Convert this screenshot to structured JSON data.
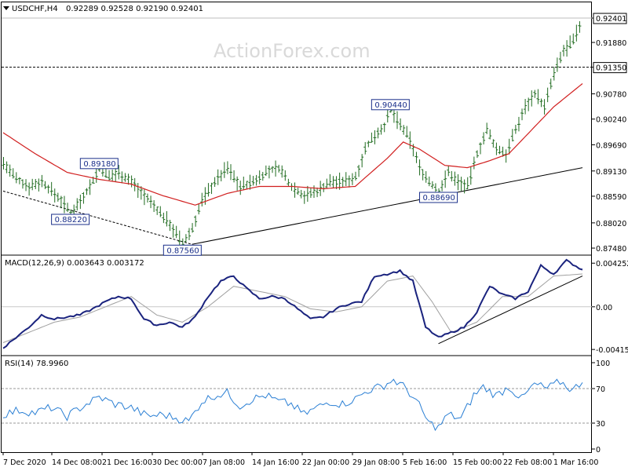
{
  "header": {
    "symbol": "USDCHF,H4",
    "ohlc": "0.92289 0.92528 0.92190 0.92401"
  },
  "watermark": "ActionForex.com",
  "colors": {
    "bars": "#1f6b1f",
    "ma": "#d11f1f",
    "macd": "#1a237e",
    "signal": "#a0a0a0",
    "rsi": "#2a7fd4",
    "label_border": "#1a2f8a"
  },
  "price_axis": {
    "ticks": [
      "0.92401",
      "0.91880",
      "0.91350",
      "0.90780",
      "0.90240",
      "0.89690",
      "0.89130",
      "0.88590",
      "0.88020",
      "0.87480"
    ],
    "ylim": [
      0.8738,
      0.9262
    ],
    "dashed_level_label": "0.91350",
    "current_price_label": "0.92401"
  },
  "annotations": [
    {
      "text": "0.89180",
      "price": 0.8918,
      "bar": 30
    },
    {
      "text": "0.88220",
      "price": 0.8822,
      "bar": 21
    },
    {
      "text": "0.87560",
      "price": 0.8756,
      "bar": 56
    },
    {
      "text": "0.90440",
      "price": 0.9044,
      "bar": 121
    },
    {
      "text": "0.88690",
      "price": 0.8869,
      "bar": 136
    }
  ],
  "macd_panel": {
    "label": "MACD(12,26,9) 0.003643 0.003172",
    "ticks": [
      "0.004252",
      "0.00",
      "-0.004159"
    ],
    "ylim": [
      -0.0043,
      0.0045
    ]
  },
  "rsi_panel": {
    "label": "RSI(14) 78.9960",
    "ticks": [
      "100",
      "70",
      "30",
      "0"
    ]
  },
  "x_axis": {
    "labels": [
      "7 Dec 2020",
      "14 Dec 08:00",
      "21 Dec 16:00",
      "30 Dec 00:00",
      "7 Jan 08:00",
      "14 Jan 16:00",
      "22 Jan 00:00",
      "29 Jan 08:00",
      "5 Feb 16:00",
      "15 Feb 00:00",
      "22 Feb 08:00",
      "1 Mar 16:00"
    ]
  },
  "chart_data": {
    "type": "line",
    "title": "USDCHF,H4",
    "bar_count": 181,
    "price_anchors": [
      [
        0,
        0.893
      ],
      [
        4,
        0.8895
      ],
      [
        8,
        0.888
      ],
      [
        12,
        0.889
      ],
      [
        15,
        0.887
      ],
      [
        18,
        0.885
      ],
      [
        21,
        0.8822
      ],
      [
        24,
        0.885
      ],
      [
        27,
        0.888
      ],
      [
        30,
        0.8918
      ],
      [
        33,
        0.89
      ],
      [
        36,
        0.891
      ],
      [
        40,
        0.889
      ],
      [
        44,
        0.886
      ],
      [
        48,
        0.883
      ],
      [
        52,
        0.88
      ],
      [
        56,
        0.8756
      ],
      [
        59,
        0.879
      ],
      [
        62,
        0.885
      ],
      [
        66,
        0.889
      ],
      [
        70,
        0.892
      ],
      [
        74,
        0.888
      ],
      [
        78,
        0.889
      ],
      [
        82,
        0.891
      ],
      [
        86,
        0.892
      ],
      [
        90,
        0.888
      ],
      [
        94,
        0.886
      ],
      [
        98,
        0.887
      ],
      [
        102,
        0.889
      ],
      [
        106,
        0.889
      ],
      [
        110,
        0.89
      ],
      [
        113,
        0.896
      ],
      [
        116,
        0.899
      ],
      [
        119,
        0.901
      ],
      [
        121,
        0.9044
      ],
      [
        124,
        0.901
      ],
      [
        127,
        0.898
      ],
      [
        130,
        0.892
      ],
      [
        133,
        0.889
      ],
      [
        136,
        0.8869
      ],
      [
        139,
        0.891
      ],
      [
        142,
        0.889
      ],
      [
        145,
        0.888
      ],
      [
        148,
        0.895
      ],
      [
        151,
        0.9
      ],
      [
        154,
        0.896
      ],
      [
        157,
        0.895
      ],
      [
        160,
        0.9
      ],
      [
        163,
        0.905
      ],
      [
        166,
        0.908
      ],
      [
        169,
        0.905
      ],
      [
        172,
        0.912
      ],
      [
        175,
        0.917
      ],
      [
        178,
        0.919
      ],
      [
        181,
        0.924
      ]
    ],
    "moving_average_anchors": [
      [
        0,
        0.8995
      ],
      [
        10,
        0.895
      ],
      [
        20,
        0.891
      ],
      [
        30,
        0.8895
      ],
      [
        40,
        0.8885
      ],
      [
        50,
        0.886
      ],
      [
        60,
        0.884
      ],
      [
        70,
        0.8865
      ],
      [
        80,
        0.888
      ],
      [
        90,
        0.888
      ],
      [
        100,
        0.8875
      ],
      [
        110,
        0.888
      ],
      [
        120,
        0.894
      ],
      [
        125,
        0.8975
      ],
      [
        130,
        0.896
      ],
      [
        138,
        0.8925
      ],
      [
        145,
        0.892
      ],
      [
        152,
        0.8935
      ],
      [
        158,
        0.895
      ],
      [
        165,
        0.9
      ],
      [
        172,
        0.905
      ],
      [
        181,
        0.91
      ]
    ],
    "trend_lines": [
      {
        "from": [
          0,
          0.887
        ],
        "to": [
          59,
          0.8756
        ]
      },
      {
        "from": [
          59,
          0.8756
        ],
        "to": [
          181,
          0.892
        ]
      }
    ],
    "macd_anchors": [
      [
        0,
        -0.004
      ],
      [
        4,
        -0.003
      ],
      [
        8,
        -0.002
      ],
      [
        12,
        -0.0008
      ],
      [
        16,
        -0.0012
      ],
      [
        20,
        -0.001
      ],
      [
        24,
        -0.0008
      ],
      [
        28,
        -0.0002
      ],
      [
        32,
        0.0005
      ],
      [
        36,
        0.001
      ],
      [
        40,
        0.0008
      ],
      [
        44,
        -0.0012
      ],
      [
        48,
        -0.0018
      ],
      [
        52,
        -0.0015
      ],
      [
        56,
        -0.002
      ],
      [
        60,
        -0.001
      ],
      [
        64,
        0.001
      ],
      [
        68,
        0.0025
      ],
      [
        72,
        0.003
      ],
      [
        76,
        0.0018
      ],
      [
        80,
        0.0008
      ],
      [
        84,
        0.001
      ],
      [
        88,
        0.0008
      ],
      [
        92,
        -0.0002
      ],
      [
        96,
        -0.0012
      ],
      [
        100,
        -0.001
      ],
      [
        104,
        -0.0002
      ],
      [
        108,
        0.0003
      ],
      [
        112,
        0.0005
      ],
      [
        116,
        0.003
      ],
      [
        120,
        0.0032
      ],
      [
        124,
        0.0035
      ],
      [
        128,
        0.0025
      ],
      [
        132,
        -0.002
      ],
      [
        136,
        -0.003
      ],
      [
        140,
        -0.0025
      ],
      [
        144,
        -0.002
      ],
      [
        148,
        -0.0005
      ],
      [
        152,
        0.002
      ],
      [
        156,
        0.0012
      ],
      [
        160,
        0.0008
      ],
      [
        164,
        0.0015
      ],
      [
        168,
        0.004
      ],
      [
        172,
        0.0032
      ],
      [
        176,
        0.0045
      ],
      [
        181,
        0.0036
      ]
    ],
    "signal_anchors": [
      [
        0,
        -0.0035
      ],
      [
        8,
        -0.0025
      ],
      [
        16,
        -0.0015
      ],
      [
        24,
        -0.001
      ],
      [
        32,
        0.0
      ],
      [
        40,
        0.001
      ],
      [
        48,
        -0.0008
      ],
      [
        56,
        -0.0015
      ],
      [
        64,
        0.0
      ],
      [
        72,
        0.002
      ],
      [
        80,
        0.0015
      ],
      [
        88,
        0.001
      ],
      [
        96,
        -0.0002
      ],
      [
        104,
        -0.0005
      ],
      [
        112,
        0.0
      ],
      [
        120,
        0.0025
      ],
      [
        128,
        0.003
      ],
      [
        134,
        0.0005
      ],
      [
        140,
        -0.0025
      ],
      [
        148,
        -0.0015
      ],
      [
        156,
        0.001
      ],
      [
        164,
        0.001
      ],
      [
        172,
        0.003
      ],
      [
        181,
        0.0032
      ]
    ],
    "rsi_anchors": [
      [
        0,
        40
      ],
      [
        5,
        45
      ],
      [
        10,
        42
      ],
      [
        15,
        48
      ],
      [
        20,
        38
      ],
      [
        25,
        50
      ],
      [
        30,
        60
      ],
      [
        35,
        52
      ],
      [
        40,
        48
      ],
      [
        45,
        38
      ],
      [
        50,
        40
      ],
      [
        55,
        35
      ],
      [
        58,
        32
      ],
      [
        62,
        55
      ],
      [
        66,
        62
      ],
      [
        70,
        65
      ],
      [
        74,
        50
      ],
      [
        78,
        58
      ],
      [
        82,
        62
      ],
      [
        86,
        55
      ],
      [
        90,
        52
      ],
      [
        94,
        40
      ],
      [
        98,
        48
      ],
      [
        102,
        55
      ],
      [
        106,
        52
      ],
      [
        110,
        58
      ],
      [
        114,
        68
      ],
      [
        118,
        72
      ],
      [
        122,
        80
      ],
      [
        126,
        70
      ],
      [
        130,
        50
      ],
      [
        133,
        30
      ],
      [
        136,
        25
      ],
      [
        139,
        40
      ],
      [
        143,
        35
      ],
      [
        147,
        62
      ],
      [
        150,
        72
      ],
      [
        154,
        62
      ],
      [
        158,
        72
      ],
      [
        162,
        58
      ],
      [
        166,
        75
      ],
      [
        170,
        70
      ],
      [
        174,
        78
      ],
      [
        178,
        68
      ],
      [
        181,
        79
      ]
    ]
  }
}
